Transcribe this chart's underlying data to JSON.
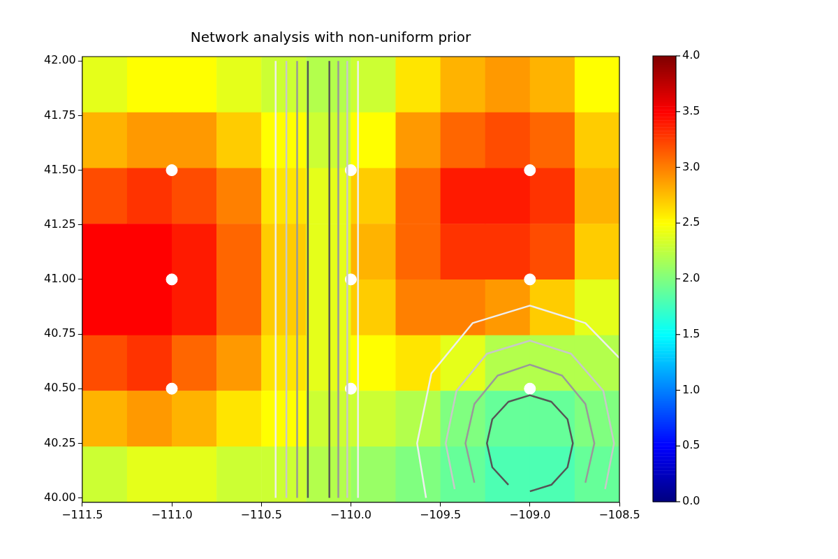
{
  "chart_data": {
    "type": "heatmap",
    "title": "Network analysis with non-uniform prior",
    "cells": [
      [
        2.4,
        2.5,
        2.5,
        2.4,
        2.3,
        2.2,
        2.3,
        2.6,
        2.8,
        2.9,
        2.8,
        2.5
      ],
      [
        2.8,
        2.9,
        2.9,
        2.7,
        2.5,
        2.3,
        2.5,
        2.9,
        3.1,
        3.2,
        3.1,
        2.7
      ],
      [
        3.2,
        3.3,
        3.2,
        3.0,
        2.6,
        2.4,
        2.7,
        3.1,
        3.4,
        3.4,
        3.3,
        2.8
      ],
      [
        3.5,
        3.5,
        3.4,
        3.1,
        2.7,
        2.4,
        2.8,
        3.1,
        3.3,
        3.3,
        3.2,
        2.7
      ],
      [
        3.5,
        3.5,
        3.4,
        3.1,
        2.7,
        2.4,
        2.7,
        3.0,
        3.0,
        2.9,
        2.7,
        2.4
      ],
      [
        3.2,
        3.3,
        3.1,
        2.9,
        2.6,
        2.4,
        2.5,
        2.6,
        2.4,
        2.2,
        2.2,
        2.2
      ],
      [
        2.8,
        2.9,
        2.8,
        2.6,
        2.5,
        2.3,
        2.3,
        2.2,
        2.0,
        1.9,
        1.9,
        2.0
      ],
      [
        2.3,
        2.4,
        2.4,
        2.3,
        2.3,
        2.2,
        2.1,
        2.0,
        1.9,
        1.8,
        1.8,
        1.9
      ]
    ],
    "clim": [
      0,
      4
    ],
    "cticks": [
      {
        "value": 0,
        "label": "0.0"
      },
      {
        "value": 0.5,
        "label": "0.5"
      },
      {
        "value": 1,
        "label": "1.0"
      },
      {
        "value": 1.5,
        "label": "1.5"
      },
      {
        "value": 2,
        "label": "2.0"
      },
      {
        "value": 2.5,
        "label": "2.5"
      },
      {
        "value": 3,
        "label": "3.0"
      },
      {
        "value": 3.5,
        "label": "3.5"
      },
      {
        "value": 4,
        "label": "4.0"
      }
    ],
    "xlim": [
      -111.5,
      -108.5
    ],
    "xticks": [
      {
        "value": -111.5,
        "label": "−111.5"
      },
      {
        "value": -111,
        "label": "−111.0"
      },
      {
        "value": -110.5,
        "label": "−110.5"
      },
      {
        "value": -110,
        "label": "−110.0"
      },
      {
        "value": -109.5,
        "label": "−109.5"
      },
      {
        "value": -109,
        "label": "−109.0"
      },
      {
        "value": -108.5,
        "label": "−108.5"
      }
    ],
    "ylim": [
      39.98,
      42.02
    ],
    "yticks": [
      {
        "value": 40,
        "label": "40.00"
      },
      {
        "value": 40.25,
        "label": "40.25"
      },
      {
        "value": 40.5,
        "label": "40.50"
      },
      {
        "value": 40.75,
        "label": "40.75"
      },
      {
        "value": 41,
        "label": "41.00"
      },
      {
        "value": 41.25,
        "label": "41.25"
      },
      {
        "value": 41.5,
        "label": "41.50"
      },
      {
        "value": 41.75,
        "label": "41.75"
      },
      {
        "value": 42,
        "label": "42.00"
      }
    ],
    "grid": false,
    "legend": false,
    "series": [
      {
        "type": "line",
        "color": "#eeeeee",
        "x": [
          -110.42,
          -110.42
        ],
        "values": [
          40,
          42
        ]
      },
      {
        "type": "line",
        "color": "#c8c8c8",
        "x": [
          -110.36,
          -110.36
        ],
        "values": [
          40,
          42
        ]
      },
      {
        "type": "line",
        "color": "#999999",
        "x": [
          -110.3,
          -110.3
        ],
        "values": [
          40,
          42
        ]
      },
      {
        "type": "line",
        "color": "#555555",
        "x": [
          -110.24,
          -110.24
        ],
        "values": [
          40,
          42
        ]
      },
      {
        "type": "line",
        "color": "#555555",
        "x": [
          -110.12,
          -110.12
        ],
        "values": [
          40,
          42
        ]
      },
      {
        "type": "line",
        "color": "#999999",
        "x": [
          -110.07,
          -110.07
        ],
        "values": [
          40,
          42
        ]
      },
      {
        "type": "line",
        "color": "#c8c8c8",
        "x": [
          -110.02,
          -110.02
        ],
        "values": [
          40,
          42
        ]
      },
      {
        "type": "line",
        "color": "#eeeeee",
        "x": [
          -109.96,
          -109.96
        ],
        "values": [
          40,
          42
        ]
      },
      {
        "type": "line",
        "color": "#555555",
        "x": [
          -109.0,
          -108.88,
          -108.79,
          -108.76,
          -108.79,
          -108.88,
          -109.0,
          -109.12,
          -109.21,
          -109.24,
          -109.21,
          -109.12
        ],
        "values": [
          40.03,
          40.06,
          40.14,
          40.25,
          40.36,
          40.44,
          40.47,
          40.44,
          40.36,
          40.25,
          40.14,
          40.06
        ]
      },
      {
        "type": "line",
        "color": "#999999",
        "x": [
          -108.69,
          -108.64,
          -108.69,
          -108.82,
          -109.0,
          -109.18,
          -109.31,
          -109.36,
          -109.31
        ],
        "values": [
          40.07,
          40.25,
          40.43,
          40.56,
          40.61,
          40.56,
          40.43,
          40.25,
          40.07
        ]
      },
      {
        "type": "line",
        "color": "#c8c8c8",
        "x": [
          -108.58,
          -108.53,
          -108.59,
          -108.77,
          -109.0,
          -109.24,
          -109.41,
          -109.47,
          -109.42
        ],
        "values": [
          40.04,
          40.25,
          40.49,
          40.66,
          40.72,
          40.66,
          40.49,
          40.25,
          40.04
        ]
      },
      {
        "type": "line",
        "color": "#eeeeee",
        "x": [
          -108.5,
          -108.69,
          -109.0,
          -109.32,
          -109.55,
          -109.63,
          -109.58
        ],
        "values": [
          40.64,
          40.8,
          40.88,
          40.8,
          40.57,
          40.25,
          40.0
        ]
      },
      {
        "type": "scatter",
        "marker": "circle",
        "color": "#ffffff",
        "x": [
          -111,
          -111,
          -111,
          -110,
          -110,
          -110,
          -109,
          -109,
          -109
        ],
        "values": [
          41.5,
          41,
          40.5,
          41.5,
          41,
          40.5,
          41.5,
          41,
          40.5
        ]
      }
    ]
  }
}
